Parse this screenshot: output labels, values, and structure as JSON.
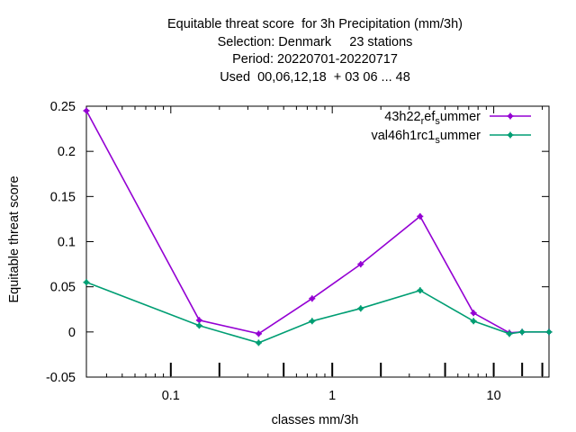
{
  "chart_data": {
    "type": "line",
    "title_lines": [
      "Equitable threat score  for 3h Precipitation (mm/3h)",
      "Selection: Denmark     23 stations",
      "Period: 20220701-20220717",
      "Used  00,06,12,18  + 03 06 ... 48"
    ],
    "xlabel": "classes mm/3h",
    "ylabel": "Equitable threat score",
    "x_scale": "log",
    "xlim": [
      0.03,
      22
    ],
    "ylim": [
      -0.05,
      0.25
    ],
    "x_ticks": [
      0.1,
      1,
      10
    ],
    "x_tick_labels": [
      "0.1",
      "1",
      "10"
    ],
    "y_ticks": [
      -0.05,
      0,
      0.05,
      0.1,
      0.15,
      0.2,
      0.25
    ],
    "y_tick_labels": [
      "-0.05",
      "0",
      "0.05",
      "0.1",
      "0.15",
      "0.2",
      "0.25"
    ],
    "class_ticks": [
      0.1,
      0.2,
      0.5,
      1,
      2,
      5,
      10,
      15,
      20
    ],
    "grid": false,
    "legend_position": "top-right",
    "series": [
      {
        "name": "43h22_ref_summer",
        "legend_parts": [
          "43h22",
          "r",
          "ef",
          "s",
          "ummer"
        ],
        "color": "#9400d3",
        "x": [
          0.03,
          0.15,
          0.35,
          0.75,
          1.5,
          3.5,
          7.5,
          12.5,
          15,
          22
        ],
        "y": [
          0.245,
          0.013,
          -0.002,
          0.037,
          0.075,
          0.128,
          0.021,
          -0.001,
          0.0,
          0.0
        ]
      },
      {
        "name": "val46h1rc1_summer",
        "legend_parts": [
          "val46h1rc1",
          "s",
          "ummer"
        ],
        "color": "#009e73",
        "x": [
          0.03,
          0.15,
          0.35,
          0.75,
          1.5,
          3.5,
          7.5,
          12.5,
          15,
          22
        ],
        "y": [
          0.055,
          0.007,
          -0.012,
          0.012,
          0.026,
          0.046,
          0.012,
          -0.002,
          0.0,
          0.0
        ]
      }
    ]
  }
}
